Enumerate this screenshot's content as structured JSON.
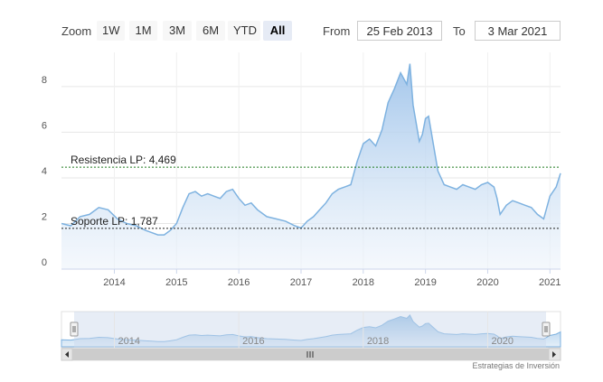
{
  "range_selector": {
    "zoom_label": "Zoom",
    "buttons": [
      {
        "label": "1W",
        "active": false
      },
      {
        "label": "1M",
        "active": false
      },
      {
        "label": "3M",
        "active": false
      },
      {
        "label": "6M",
        "active": false
      },
      {
        "label": "YTD",
        "active": false
      },
      {
        "label": "All",
        "active": true
      }
    ],
    "from_label": "From",
    "from_value": "25 Feb 2013",
    "to_label": "To",
    "to_value": "3 Mar 2021"
  },
  "chart_data": {
    "type": "area",
    "y_ticks": [
      "0",
      "2",
      "4",
      "6",
      "8"
    ],
    "ylim": [
      0,
      9.5
    ],
    "x_ticks": [
      "2014",
      "2015",
      "2016",
      "2017",
      "2018",
      "2019",
      "2020",
      "2021"
    ],
    "xlim": [
      2013.15,
      2021.17
    ],
    "grid": true,
    "series": [
      {
        "x": [
          2013.15,
          2013.3,
          2013.45,
          2013.6,
          2013.75,
          2013.9,
          2014.05,
          2014.2,
          2014.35,
          2014.5,
          2014.6,
          2014.7,
          2014.8,
          2014.9,
          2015.0,
          2015.1,
          2015.2,
          2015.3,
          2015.4,
          2015.5,
          2015.6,
          2015.7,
          2015.8,
          2015.9,
          2016.0,
          2016.1,
          2016.2,
          2016.3,
          2016.45,
          2016.6,
          2016.75,
          2016.9,
          2017.0,
          2017.1,
          2017.2,
          2017.3,
          2017.4,
          2017.5,
          2017.6,
          2017.7,
          2017.8,
          2017.9,
          2018.0,
          2018.1,
          2018.2,
          2018.3,
          2018.4,
          2018.5,
          2018.6,
          2018.7,
          2018.75,
          2018.8,
          2018.9,
          2018.95,
          2019.0,
          2019.05,
          2019.1,
          2019.2,
          2019.3,
          2019.4,
          2019.5,
          2019.6,
          2019.7,
          2019.8,
          2019.9,
          2020.0,
          2020.1,
          2020.15,
          2020.2,
          2020.3,
          2020.4,
          2020.5,
          2020.6,
          2020.7,
          2020.8,
          2020.9,
          2021.0,
          2021.1,
          2021.17
        ],
        "values": [
          2.0,
          1.9,
          2.3,
          2.4,
          2.7,
          2.6,
          2.2,
          2.0,
          1.9,
          1.7,
          1.6,
          1.5,
          1.5,
          1.7,
          2.0,
          2.7,
          3.3,
          3.4,
          3.2,
          3.3,
          3.2,
          3.1,
          3.4,
          3.5,
          3.1,
          2.8,
          2.9,
          2.6,
          2.3,
          2.2,
          2.1,
          1.9,
          1.8,
          2.1,
          2.3,
          2.6,
          2.9,
          3.3,
          3.5,
          3.6,
          3.7,
          4.7,
          5.5,
          5.7,
          5.4,
          6.1,
          7.3,
          7.9,
          8.6,
          8.1,
          9.0,
          7.2,
          5.6,
          5.9,
          6.6,
          6.7,
          5.9,
          4.3,
          3.7,
          3.6,
          3.5,
          3.7,
          3.6,
          3.5,
          3.7,
          3.8,
          3.6,
          3.1,
          2.4,
          2.8,
          3.0,
          2.9,
          2.8,
          2.7,
          2.4,
          2.2,
          3.2,
          3.6,
          4.2
        ]
      }
    ],
    "annotations": [
      {
        "label": "Resistencia LP: 4,469",
        "value": 4.469
      },
      {
        "label": "Soporte LP: 1,787",
        "value": 1.787
      }
    ],
    "navigator_ticks": [
      "2014",
      "2016",
      "2018",
      "2020"
    ]
  },
  "credit": "Estrategias de Inversión",
  "colors": {
    "line": "#7eb2e0",
    "fill_top": "#9ec3ea",
    "fill_bottom": "#eef4fb",
    "resistance": "#1f7a1f",
    "support": "#222222",
    "grid": "#e6e6e6",
    "navigator_mask": "#c9d6ea"
  },
  "icons": {
    "handle_left": "navigator-left-handle-icon",
    "handle_right": "navigator-right-handle-icon",
    "scroll_left": "scroll-left-arrow-icon",
    "scroll_right": "scroll-right-arrow-icon",
    "scroll_grip": "scrollbar-grip-icon"
  }
}
